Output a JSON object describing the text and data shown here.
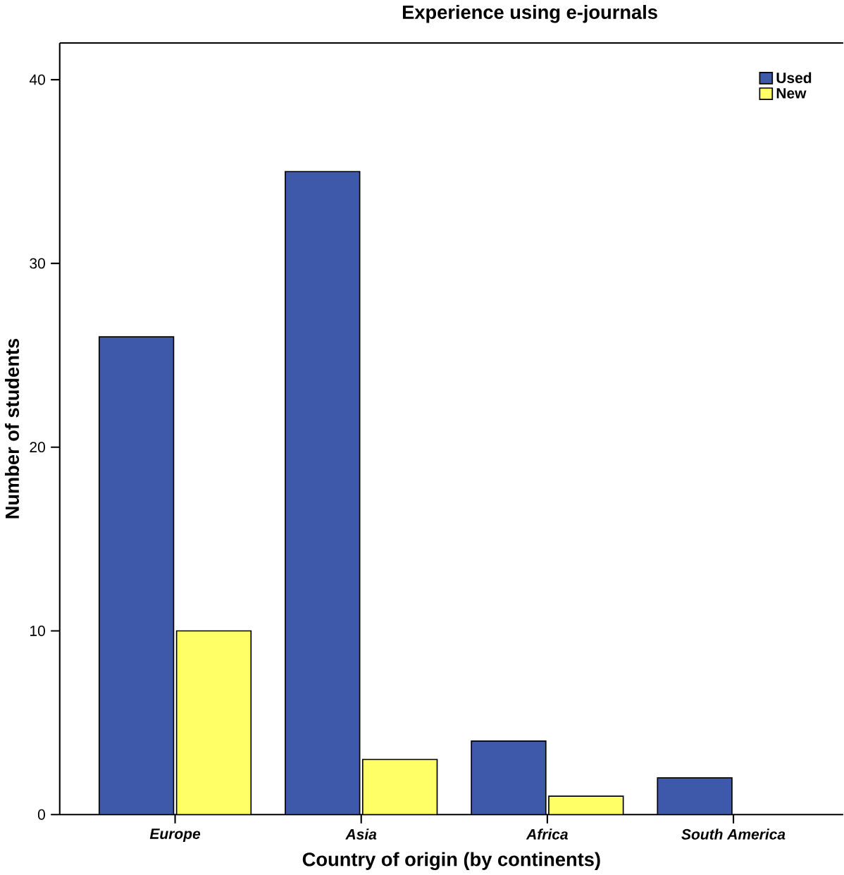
{
  "chart_data": {
    "type": "bar",
    "title": "Experience using e-journals",
    "xlabel": "Country of origin (by continents)",
    "ylabel": "Number of students",
    "categories": [
      "Europe",
      "Asia",
      "Africa",
      "South America"
    ],
    "series": [
      {
        "name": "Used",
        "color": "#3f59aa",
        "values": [
          26,
          35,
          4,
          2
        ]
      },
      {
        "name": "New",
        "color": "#ffff66",
        "values": [
          10,
          3,
          1,
          null
        ]
      }
    ],
    "ylim": [
      0,
      42
    ],
    "yticks": [
      0,
      10,
      20,
      30,
      40
    ],
    "legend": "top right",
    "grid": false
  }
}
